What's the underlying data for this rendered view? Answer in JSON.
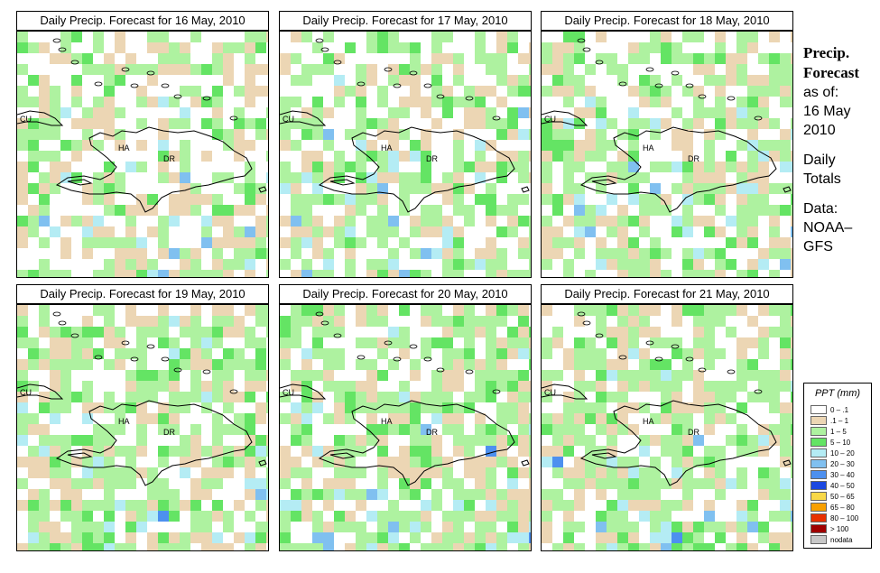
{
  "panels": [
    {
      "title": "Daily Precip. Forecast for  16 May, 2010",
      "seed": 3,
      "wet": 0.55
    },
    {
      "title": "Daily Precip. Forecast for  17 May, 2010",
      "seed": 11,
      "wet": 0.6
    },
    {
      "title": "Daily Precip. Forecast for  18 May, 2010",
      "seed": 23,
      "wet": 0.62
    },
    {
      "title": "Daily Precip. Forecast for  19 May, 2010",
      "seed": 37,
      "wet": 0.7
    },
    {
      "title": "Daily Precip. Forecast for  20 May, 2010",
      "seed": 41,
      "wet": 0.75
    },
    {
      "title": "Daily Precip. Forecast for  21 May, 2010",
      "seed": 53,
      "wet": 0.72
    }
  ],
  "map_labels": {
    "cu": "CU",
    "ha": "HA",
    "dr": "DR"
  },
  "sidebar": {
    "title1": "Precip.",
    "title2": "Forecast",
    "asof": "as of:",
    "date1": "16 May",
    "date2": "2010",
    "daily": "Daily",
    "totals": "Totals",
    "data_label": "Data:",
    "source1": "NOAA–",
    "source2": "GFS"
  },
  "legend": {
    "title": "PPT (mm)",
    "items": [
      {
        "label": "0 – .1",
        "color": "#ffffff"
      },
      {
        "label": ".1 – 1",
        "color": "#ecd6b4"
      },
      {
        "label": "1 – 5",
        "color": "#aef2a0"
      },
      {
        "label": "5 – 10",
        "color": "#64e464"
      },
      {
        "label": "10 – 20",
        "color": "#b4ecf4"
      },
      {
        "label": "20 – 30",
        "color": "#80c0f0"
      },
      {
        "label": "30 – 40",
        "color": "#4d90ef"
      },
      {
        "label": "40 – 50",
        "color": "#1c48e0"
      },
      {
        "label": "50 – 65",
        "color": "#f8d848"
      },
      {
        "label": "65 – 80",
        "color": "#f8a000"
      },
      {
        "label": "80 – 100",
        "color": "#e83000"
      },
      {
        "label": "> 100",
        "color": "#a00000"
      },
      {
        "label": "nodata",
        "color": "#c8c8c8"
      }
    ]
  }
}
